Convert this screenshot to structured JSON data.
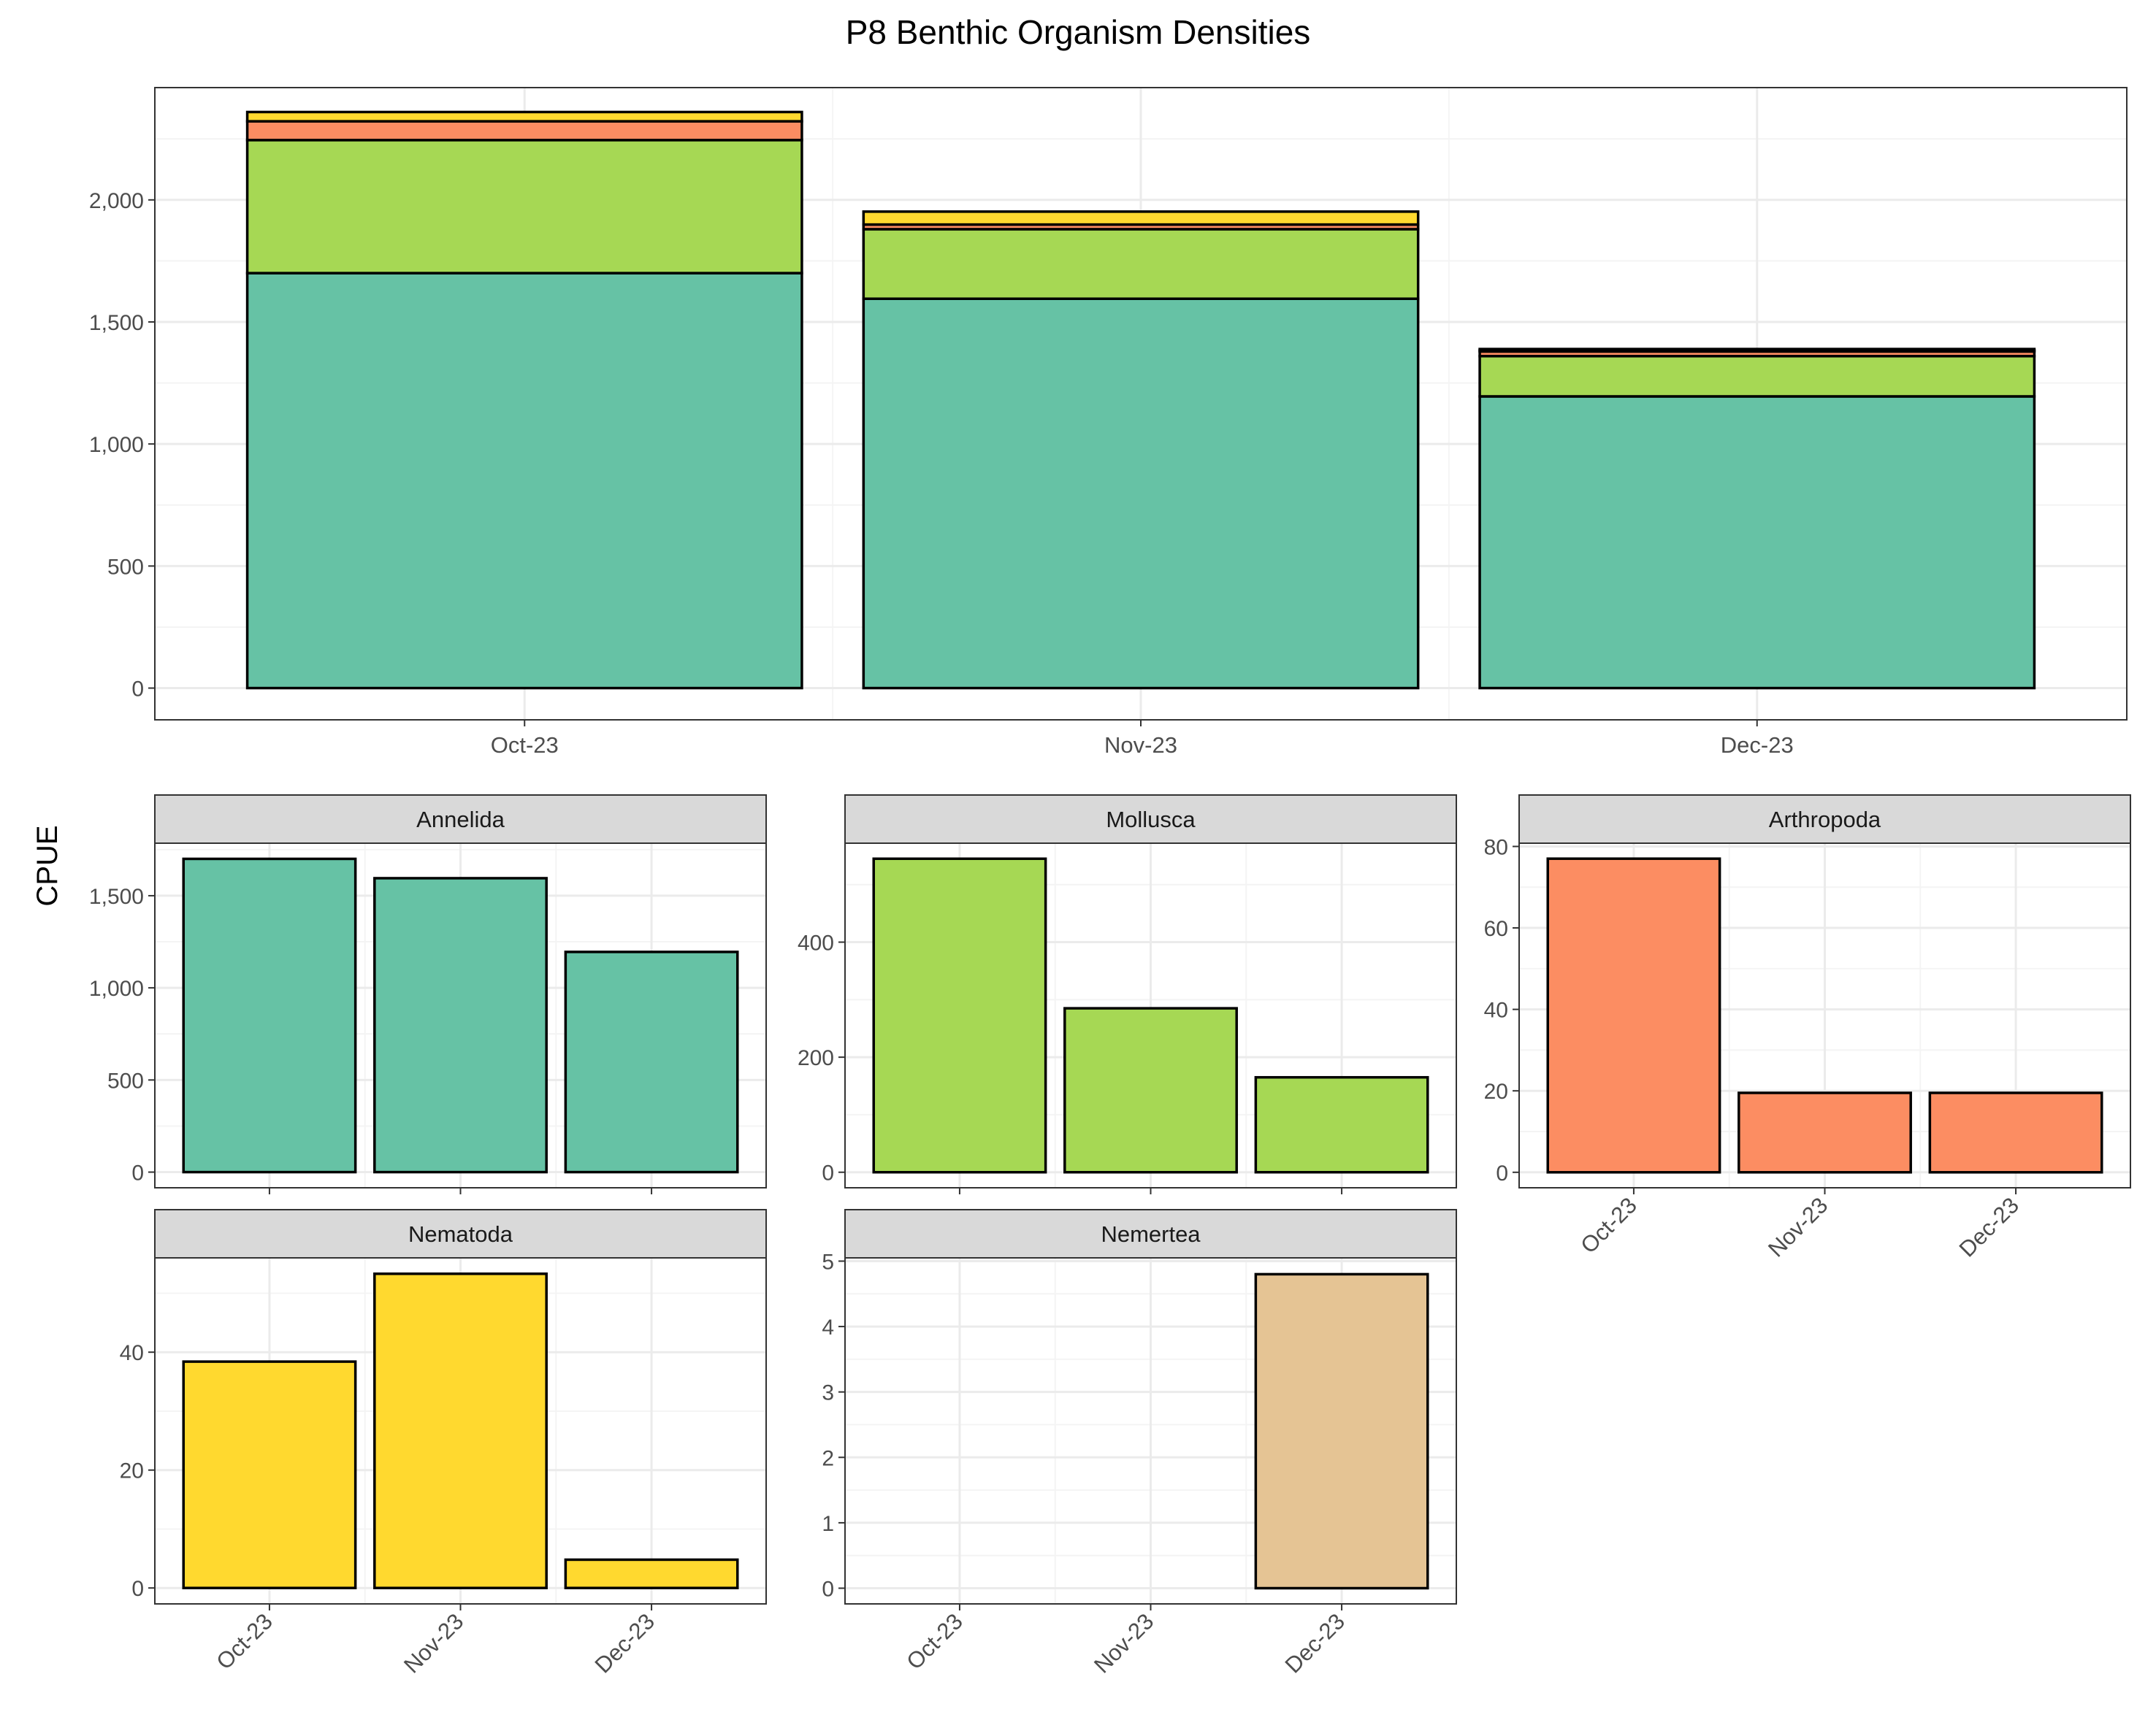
{
  "title": "P8 Benthic Organism Densities",
  "ylabel": "CPUE",
  "colors": {
    "Annelida": "#66c2a5",
    "Mollusca": "#a6d854",
    "Arthropoda": "#fc8d62",
    "Nematoda": "#ffd92f",
    "Nemertea": "#e5c494",
    "grid_major": "#ebebeb",
    "grid_minor": "#f4f4f4",
    "strip_fill": "#d9d9d9",
    "axis_text": "#4d4d4d"
  },
  "chart_data": [
    {
      "type": "bar",
      "stacked": true,
      "title": "P8 Benthic Organism Densities",
      "categories": [
        "Oct-23",
        "Nov-23",
        "Dec-23"
      ],
      "series": [
        {
          "name": "Annelida",
          "values": [
            1700,
            1595,
            1195
          ]
        },
        {
          "name": "Mollusca",
          "values": [
            545,
            285,
            165
          ]
        },
        {
          "name": "Arthropoda",
          "values": [
            77,
            19,
            19
          ]
        },
        {
          "name": "Nematoda",
          "values": [
            38,
            53,
            5
          ]
        },
        {
          "name": "Nemertea",
          "values": [
            0,
            0,
            5
          ]
        }
      ],
      "ylim": [
        -130,
        2460
      ],
      "yticks": [
        0,
        500,
        1000,
        1500,
        2000
      ],
      "yticklabels": [
        "0",
        "500",
        "1,000",
        "1,500",
        "2,000"
      ],
      "grid": true
    },
    {
      "type": "bar",
      "panel": "Annelida",
      "categories": [
        "Oct-23",
        "Nov-23",
        "Dec-23"
      ],
      "values": [
        1700,
        1595,
        1195
      ],
      "ylim": [
        -85,
        1785
      ],
      "yticks": [
        0,
        500,
        1000,
        1500
      ],
      "yticklabels": [
        "0",
        "500",
        "1,000",
        "1,500"
      ],
      "show_x_ticklabels": false,
      "grid": true
    },
    {
      "type": "bar",
      "panel": "Mollusca",
      "categories": [
        "Oct-23",
        "Nov-23",
        "Dec-23"
      ],
      "values": [
        545,
        285,
        165
      ],
      "ylim": [
        -27,
        572
      ],
      "yticks": [
        0,
        200,
        400
      ],
      "yticklabels": [
        "0",
        "200",
        "400"
      ],
      "show_x_ticklabels": false,
      "grid": true
    },
    {
      "type": "bar",
      "panel": "Arthropoda",
      "categories": [
        "Oct-23",
        "Nov-23",
        "Dec-23"
      ],
      "values": [
        77,
        19.5,
        19.5
      ],
      "ylim": [
        -3.8,
        80.8
      ],
      "yticks": [
        0,
        20,
        40,
        60,
        80
      ],
      "yticklabels": [
        "0",
        "20",
        "40",
        "60",
        "80"
      ],
      "show_x_ticklabels": true,
      "grid": true
    },
    {
      "type": "bar",
      "panel": "Nematoda",
      "categories": [
        "Oct-23",
        "Nov-23",
        "Dec-23"
      ],
      "values": [
        38.4,
        53.3,
        4.8
      ],
      "ylim": [
        -2.7,
        56
      ],
      "yticks": [
        0,
        20,
        40
      ],
      "yticklabels": [
        "0",
        "20",
        "40"
      ],
      "show_x_ticklabels": true,
      "grid": true
    },
    {
      "type": "bar",
      "panel": "Nemertea",
      "categories": [
        "Oct-23",
        "Nov-23",
        "Dec-23"
      ],
      "values": [
        0,
        0,
        4.8
      ],
      "ylim": [
        -0.24,
        5.05
      ],
      "yticks": [
        0,
        1,
        2,
        3,
        4,
        5
      ],
      "yticklabels": [
        "0",
        "1",
        "2",
        "3",
        "4",
        "5"
      ],
      "show_x_ticklabels": true,
      "grid": true
    }
  ]
}
